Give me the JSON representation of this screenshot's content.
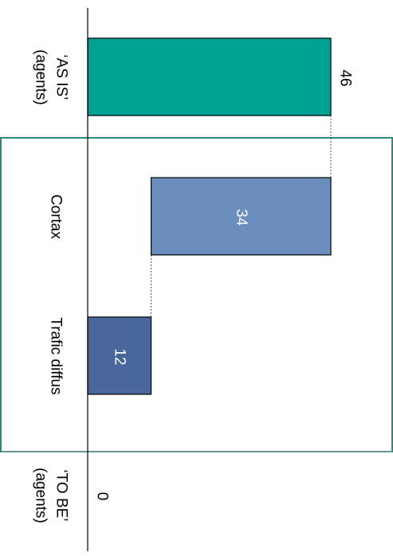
{
  "chart_data": {
    "type": "bar",
    "subtype": "waterfall",
    "orientation": "rotated-90-clockwise",
    "categories": [
      "‘AS IS’\n(agents)",
      "Cortax",
      "Trafic diffus",
      "‘TO BE’\n(agents)"
    ],
    "values": [
      46,
      34,
      12,
      0
    ],
    "bar_kind": [
      "total",
      "decrease",
      "decrease",
      "total"
    ],
    "data_labels": [
      "46",
      "34",
      "12",
      "0"
    ],
    "ylim": [
      0,
      46
    ],
    "grid": false,
    "legend": "none",
    "colors": {
      "total": "#00A093",
      "decrease_1": "#6C8EBF",
      "decrease_2": "#4A679B",
      "group_box": "#2F8A7A",
      "connector": "#555555",
      "axis": "#000000"
    }
  }
}
